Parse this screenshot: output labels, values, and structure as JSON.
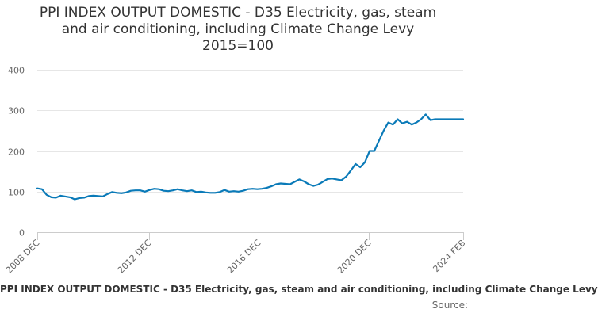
{
  "chart_data": {
    "type": "line",
    "title_lines": [
      "PPI INDEX OUTPUT DOMESTIC - D35 Electricity, gas, steam",
      "and air conditioning, including Climate Change Levy",
      "2015=100"
    ],
    "ylim": [
      0,
      400
    ],
    "yticks": [
      0,
      100,
      200,
      300,
      400
    ],
    "xticks": [
      "2008 DEC",
      "2012 DEC",
      "2016 DEC",
      "2020 DEC",
      "2024 FEB"
    ],
    "xlim": [
      "2008-12",
      "2024-02"
    ],
    "grid": true,
    "series_color": "#0a7ab8",
    "series": [
      {
        "x": [
          "2008-12",
          "2009-02",
          "2009-04",
          "2009-06",
          "2009-08",
          "2009-10",
          "2009-12",
          "2010-02",
          "2010-04",
          "2010-06",
          "2010-08",
          "2010-10",
          "2010-12",
          "2011-02",
          "2011-04",
          "2011-06",
          "2011-08",
          "2011-10",
          "2011-12",
          "2012-02",
          "2012-04",
          "2012-06",
          "2012-08",
          "2012-10",
          "2012-12",
          "2013-02",
          "2013-04",
          "2013-06",
          "2013-08",
          "2013-10",
          "2013-12",
          "2014-02",
          "2014-04",
          "2014-06",
          "2014-08",
          "2014-10",
          "2014-12",
          "2015-02",
          "2015-04",
          "2015-06",
          "2015-08",
          "2015-10",
          "2015-12",
          "2016-02",
          "2016-04",
          "2016-06",
          "2016-08",
          "2016-10",
          "2016-12",
          "2017-02",
          "2017-04",
          "2017-06",
          "2017-08",
          "2017-10",
          "2017-12",
          "2018-02",
          "2018-04",
          "2018-06",
          "2018-08",
          "2018-10",
          "2018-12",
          "2019-02",
          "2019-04",
          "2019-06",
          "2019-08",
          "2019-10",
          "2019-12",
          "2020-02",
          "2020-04",
          "2020-06",
          "2020-08",
          "2020-10",
          "2020-12",
          "2021-02",
          "2021-04",
          "2021-06",
          "2021-08",
          "2021-10",
          "2021-12",
          "2022-02",
          "2022-04",
          "2022-06",
          "2022-08",
          "2022-10",
          "2022-12",
          "2023-02",
          "2023-04",
          "2023-06",
          "2023-08",
          "2023-10",
          "2023-12",
          "2024-01",
          "2024-02"
        ],
        "values": [
          108,
          106,
          92,
          86,
          85,
          90,
          88,
          86,
          81,
          84,
          85,
          89,
          90,
          89,
          88,
          94,
          99,
          97,
          96,
          98,
          102,
          103,
          103,
          100,
          104,
          107,
          106,
          102,
          101,
          103,
          106,
          103,
          101,
          103,
          99,
          100,
          98,
          97,
          97,
          99,
          104,
          100,
          101,
          100,
          102,
          106,
          107,
          106,
          107,
          109,
          113,
          118,
          120,
          119,
          118,
          124,
          130,
          125,
          118,
          114,
          117,
          124,
          131,
          132,
          130,
          128,
          137,
          152,
          168,
          160,
          172,
          200,
          200,
          225,
          250,
          270,
          265,
          278,
          268,
          272,
          265,
          270,
          278,
          290,
          276,
          278,
          278,
          278,
          278,
          278,
          278,
          278,
          278
        ]
      }
    ],
    "caption": "PPI INDEX OUTPUT DOMESTIC - D35 Electricity, gas, steam and air conditioning, including Climate Change Levy",
    "source_label": "Source:"
  }
}
